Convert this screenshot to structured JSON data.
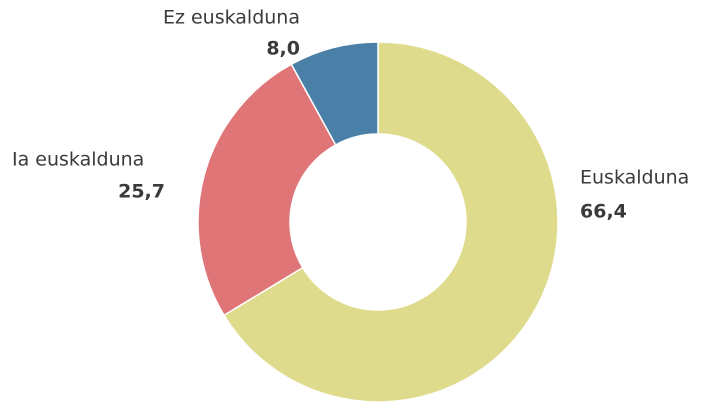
{
  "chart_data": {
    "type": "donut",
    "categories": [
      "Euskalduna",
      "Ia euskalduna",
      "Ez euskalduna"
    ],
    "values": [
      66.4,
      25.7,
      8.0
    ],
    "value_labels": [
      "66,4",
      "25,7",
      "8,0"
    ],
    "colors": [
      "#dfdb8c",
      "#e07578",
      "#4a80a8"
    ]
  }
}
